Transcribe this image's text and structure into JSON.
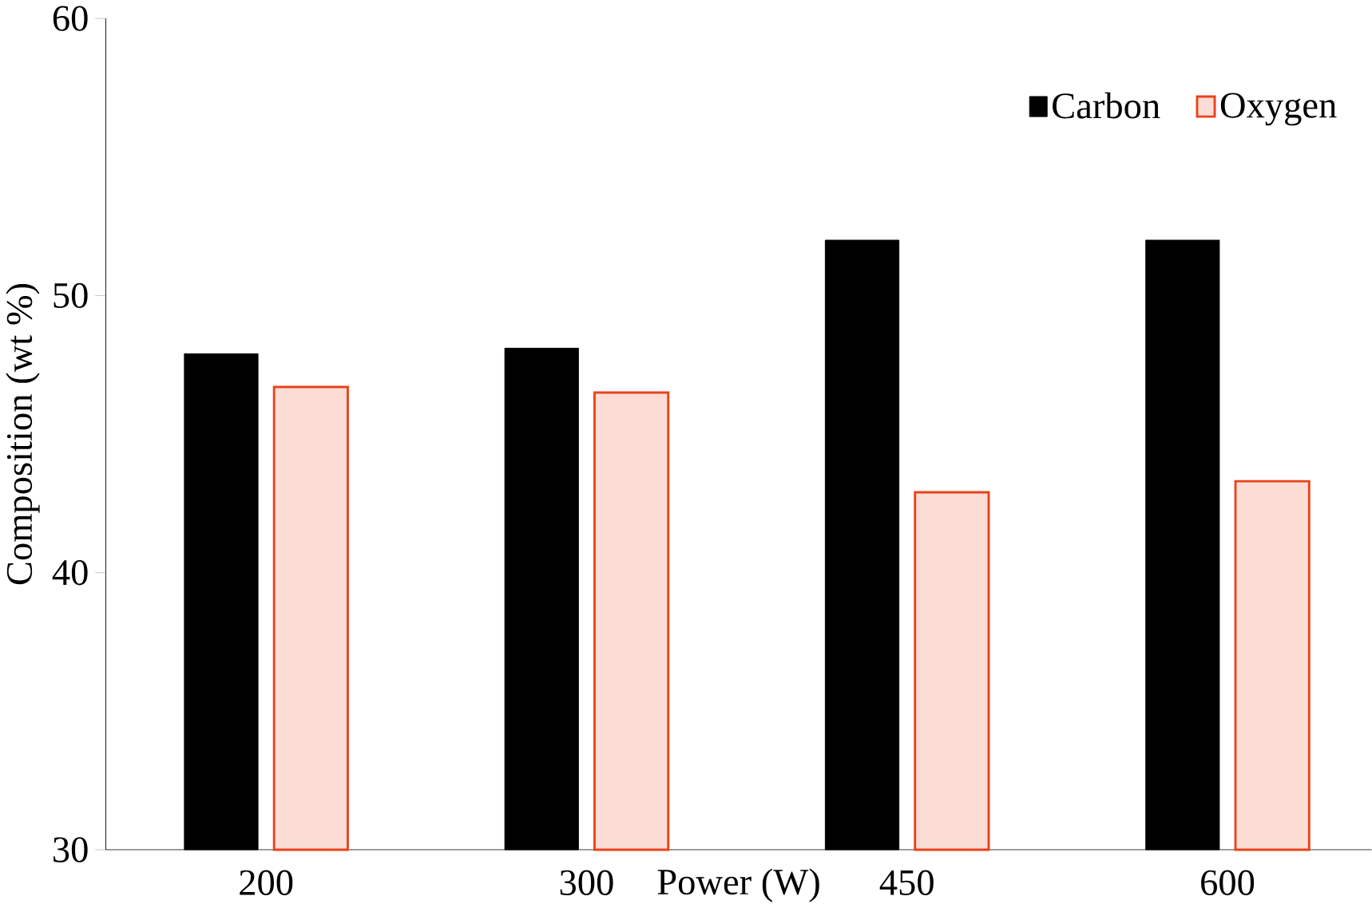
{
  "chart_data": {
    "type": "bar",
    "xlabel": "Power (W)",
    "ylabel": "Composition (wt %)",
    "categories": [
      "200",
      "300",
      "450",
      "600"
    ],
    "series": [
      {
        "name": "Carbon",
        "color": "#000000",
        "values": [
          47.9,
          48.1,
          52.0,
          52.0
        ]
      },
      {
        "name": "Oxygen",
        "color": "#e8431a",
        "values": [
          46.7,
          46.5,
          42.9,
          43.3
        ]
      }
    ],
    "ylim": [
      30,
      60
    ],
    "yticks": [
      30,
      40,
      50,
      60
    ],
    "grid": false,
    "legend": "top right"
  }
}
